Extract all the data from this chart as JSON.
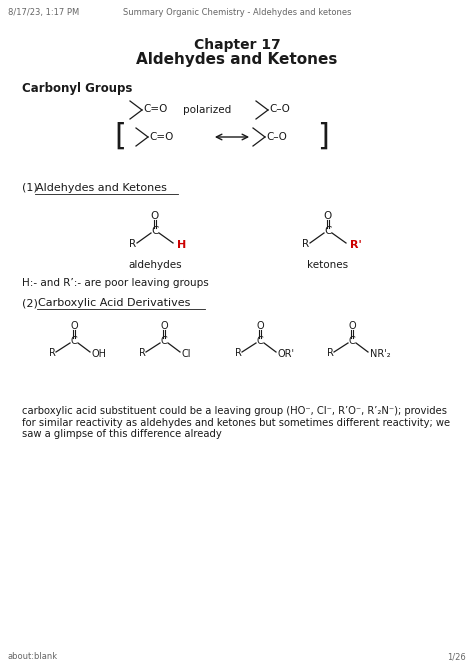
{
  "header_left": "8/17/23, 1:17 PM",
  "header_center": "Summary Organic Chemistry - Aldehydes and ketones",
  "footer_left": "about:blank",
  "footer_right": "1/26",
  "title_line1": "Chapter 17",
  "title_line2": "Aldehydes and Ketones",
  "section1_bold": "Carbonyl Groups",
  "h_text": "H:- and R’:- are poor leaving groups",
  "carboxylic_text": "carboxylic acid substituent could be a leaving group (HO⁻, Cl⁻, R’O⁻, R’₂N⁻); provides\nfor similar reactivity as aldehydes and ketones but sometimes different reactivity; we\nsaw a glimpse of this difference already",
  "bg": "#ffffff",
  "black": "#1a1a1a",
  "gray": "#666666",
  "red": "#cc0000"
}
